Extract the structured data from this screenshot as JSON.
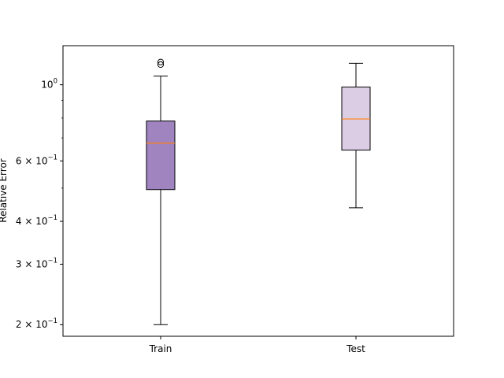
{
  "chart_data": {
    "type": "boxplot",
    "title": "",
    "xlabel": "",
    "ylabel": "Relative Error",
    "yscale": "log",
    "ylim": [
      0.185,
      1.3
    ],
    "grid": false,
    "legend": "none",
    "categories": [
      "Train",
      "Test"
    ],
    "boxes": [
      {
        "label": "Train",
        "fill": "#a084c0",
        "whisker_low": 0.2,
        "q1": 0.495,
        "median": 0.676,
        "q3": 0.784,
        "whisker_high": 1.06,
        "outliers": [
          1.145,
          1.165
        ]
      },
      {
        "label": "Test",
        "fill": "#dbcde4",
        "whisker_low": 0.438,
        "q1": 0.645,
        "median": 0.795,
        "q3": 0.985,
        "whisker_high": 1.155,
        "outliers": []
      }
    ],
    "yticks": [
      {
        "value": 1.0,
        "base": "10",
        "exp": "0"
      },
      {
        "value": 0.6,
        "base": "6 × 10",
        "exp": "−1"
      },
      {
        "value": 0.4,
        "base": "4 × 10",
        "exp": "−1"
      },
      {
        "value": 0.3,
        "base": "3 × 10",
        "exp": "−1"
      },
      {
        "value": 0.2,
        "base": "2 × 10",
        "exp": "−1"
      }
    ],
    "minor_yticks": [
      0.5,
      0.7,
      0.8,
      0.9
    ],
    "colors": {
      "median": "#ff7f0e",
      "axes": "#000000"
    }
  }
}
